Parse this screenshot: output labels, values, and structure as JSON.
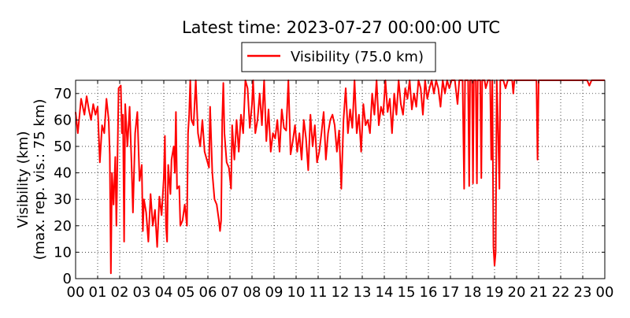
{
  "chart_data": {
    "type": "line",
    "title": "Latest time: 2023-07-27 00:00:00 UTC",
    "ylabel_line1": "Visibility (km)",
    "ylabel_line2": "(max. rep. vis.: 75 km)",
    "xlabel": "",
    "xlim": [
      0,
      24
    ],
    "ylim": [
      0,
      75
    ],
    "xticks": [
      0,
      1,
      2,
      3,
      4,
      5,
      6,
      7,
      8,
      9,
      10,
      11,
      12,
      13,
      14,
      15,
      16,
      17,
      18,
      19,
      20,
      21,
      22,
      23,
      24
    ],
    "xtick_labels": [
      "00",
      "01",
      "02",
      "03",
      "04",
      "05",
      "06",
      "07",
      "08",
      "09",
      "10",
      "11",
      "12",
      "13",
      "14",
      "15",
      "16",
      "17",
      "18",
      "19",
      "20",
      "21",
      "22",
      "23",
      "00"
    ],
    "yticks": [
      0,
      10,
      20,
      30,
      40,
      50,
      60,
      70
    ],
    "ytick_labels": [
      "0",
      "10",
      "20",
      "30",
      "40",
      "50",
      "60",
      "70"
    ],
    "grid": true,
    "legend": {
      "position": "top-center",
      "entries": [
        {
          "label": "Visibility (75.0 km)",
          "color": "#ff0000"
        }
      ]
    },
    "reference_line": {
      "y": 75,
      "color": "#000000"
    },
    "series": [
      {
        "name": "Visibility (75.0 km)",
        "color": "#ff0000",
        "points": [
          [
            0.0,
            63
          ],
          [
            0.1,
            55
          ],
          [
            0.25,
            68
          ],
          [
            0.4,
            62
          ],
          [
            0.5,
            69
          ],
          [
            0.6,
            64
          ],
          [
            0.7,
            60
          ],
          [
            0.8,
            66
          ],
          [
            0.9,
            62
          ],
          [
            1.0,
            65
          ],
          [
            1.1,
            44
          ],
          [
            1.2,
            58
          ],
          [
            1.3,
            55
          ],
          [
            1.4,
            68
          ],
          [
            1.5,
            60
          ],
          [
            1.55,
            47
          ],
          [
            1.6,
            2
          ],
          [
            1.65,
            40
          ],
          [
            1.72,
            28
          ],
          [
            1.8,
            46
          ],
          [
            1.85,
            20
          ],
          [
            1.95,
            72
          ],
          [
            2.05,
            73
          ],
          [
            2.1,
            55
          ],
          [
            2.15,
            62
          ],
          [
            2.2,
            14
          ],
          [
            2.25,
            66
          ],
          [
            2.35,
            50
          ],
          [
            2.45,
            65
          ],
          [
            2.55,
            40
          ],
          [
            2.6,
            25
          ],
          [
            2.7,
            55
          ],
          [
            2.8,
            63
          ],
          [
            2.9,
            37
          ],
          [
            3.0,
            43
          ],
          [
            3.05,
            18
          ],
          [
            3.1,
            30
          ],
          [
            3.2,
            25
          ],
          [
            3.3,
            14
          ],
          [
            3.4,
            32
          ],
          [
            3.5,
            20
          ],
          [
            3.6,
            26
          ],
          [
            3.7,
            12
          ],
          [
            3.8,
            31
          ],
          [
            3.9,
            24
          ],
          [
            4.0,
            38
          ],
          [
            4.05,
            54
          ],
          [
            4.1,
            20
          ],
          [
            4.15,
            14
          ],
          [
            4.2,
            43
          ],
          [
            4.3,
            32
          ],
          [
            4.35,
            45
          ],
          [
            4.45,
            50
          ],
          [
            4.5,
            40
          ],
          [
            4.55,
            63
          ],
          [
            4.6,
            34
          ],
          [
            4.7,
            35
          ],
          [
            4.75,
            20
          ],
          [
            4.85,
            22
          ],
          [
            4.95,
            28
          ],
          [
            5.05,
            20
          ],
          [
            5.1,
            55
          ],
          [
            5.15,
            62
          ],
          [
            5.2,
            75
          ],
          [
            5.25,
            60
          ],
          [
            5.35,
            58
          ],
          [
            5.45,
            75
          ],
          [
            5.55,
            55
          ],
          [
            5.65,
            50
          ],
          [
            5.75,
            60
          ],
          [
            5.85,
            48
          ],
          [
            5.95,
            45
          ],
          [
            6.05,
            42
          ],
          [
            6.1,
            65
          ],
          [
            6.2,
            40
          ],
          [
            6.3,
            30
          ],
          [
            6.4,
            28
          ],
          [
            6.5,
            22
          ],
          [
            6.55,
            18
          ],
          [
            6.6,
            22
          ],
          [
            6.65,
            60
          ],
          [
            6.7,
            74
          ],
          [
            6.75,
            55
          ],
          [
            6.85,
            44
          ],
          [
            6.95,
            42
          ],
          [
            7.05,
            34
          ],
          [
            7.1,
            58
          ],
          [
            7.2,
            45
          ],
          [
            7.3,
            60
          ],
          [
            7.4,
            48
          ],
          [
            7.5,
            62
          ],
          [
            7.6,
            55
          ],
          [
            7.7,
            75
          ],
          [
            7.8,
            72
          ],
          [
            7.9,
            57
          ],
          [
            8.0,
            66
          ],
          [
            8.05,
            75
          ],
          [
            8.15,
            55
          ],
          [
            8.25,
            60
          ],
          [
            8.35,
            70
          ],
          [
            8.45,
            58
          ],
          [
            8.55,
            75
          ],
          [
            8.65,
            52
          ],
          [
            8.75,
            64
          ],
          [
            8.85,
            48
          ],
          [
            8.95,
            55
          ],
          [
            9.05,
            53
          ],
          [
            9.15,
            60
          ],
          [
            9.25,
            48
          ],
          [
            9.35,
            64
          ],
          [
            9.45,
            57
          ],
          [
            9.55,
            56
          ],
          [
            9.65,
            75
          ],
          [
            9.75,
            47
          ],
          [
            9.85,
            52
          ],
          [
            9.95,
            58
          ],
          [
            10.05,
            48
          ],
          [
            10.15,
            55
          ],
          [
            10.25,
            45
          ],
          [
            10.35,
            60
          ],
          [
            10.45,
            53
          ],
          [
            10.55,
            41
          ],
          [
            10.65,
            62
          ],
          [
            10.75,
            50
          ],
          [
            10.85,
            58
          ],
          [
            10.95,
            44
          ],
          [
            11.05,
            48
          ],
          [
            11.15,
            55
          ],
          [
            11.25,
            63
          ],
          [
            11.35,
            45
          ],
          [
            11.45,
            55
          ],
          [
            11.55,
            60
          ],
          [
            11.65,
            62
          ],
          [
            11.75,
            58
          ],
          [
            11.85,
            48
          ],
          [
            11.95,
            56
          ],
          [
            12.05,
            34
          ],
          [
            12.15,
            60
          ],
          [
            12.25,
            72
          ],
          [
            12.35,
            55
          ],
          [
            12.45,
            64
          ],
          [
            12.55,
            57
          ],
          [
            12.65,
            75
          ],
          [
            12.75,
            55
          ],
          [
            12.85,
            62
          ],
          [
            12.95,
            48
          ],
          [
            13.05,
            66
          ],
          [
            13.15,
            58
          ],
          [
            13.25,
            60
          ],
          [
            13.35,
            55
          ],
          [
            13.45,
            70
          ],
          [
            13.55,
            62
          ],
          [
            13.65,
            75
          ],
          [
            13.75,
            58
          ],
          [
            13.85,
            65
          ],
          [
            13.95,
            62
          ],
          [
            14.05,
            75
          ],
          [
            14.15,
            63
          ],
          [
            14.25,
            68
          ],
          [
            14.35,
            55
          ],
          [
            14.45,
            70
          ],
          [
            14.55,
            62
          ],
          [
            14.65,
            75
          ],
          [
            14.75,
            66
          ],
          [
            14.85,
            62
          ],
          [
            14.95,
            72
          ],
          [
            15.05,
            68
          ],
          [
            15.15,
            75
          ],
          [
            15.25,
            64
          ],
          [
            15.35,
            70
          ],
          [
            15.45,
            65
          ],
          [
            15.55,
            75
          ],
          [
            15.65,
            72
          ],
          [
            15.75,
            62
          ],
          [
            15.85,
            75
          ],
          [
            15.95,
            68
          ],
          [
            16.05,
            72
          ],
          [
            16.15,
            75
          ],
          [
            16.25,
            70
          ],
          [
            16.35,
            75
          ],
          [
            16.45,
            72
          ],
          [
            16.55,
            65
          ],
          [
            16.65,
            75
          ],
          [
            16.75,
            70
          ],
          [
            16.85,
            75
          ],
          [
            16.95,
            72
          ],
          [
            17.05,
            75
          ],
          [
            17.2,
            75
          ],
          [
            17.32,
            66
          ],
          [
            17.4,
            75
          ],
          [
            17.55,
            75
          ],
          [
            17.62,
            34
          ],
          [
            17.66,
            75
          ],
          [
            17.8,
            75
          ],
          [
            17.85,
            35
          ],
          [
            17.89,
            75
          ],
          [
            17.98,
            75
          ],
          [
            18.02,
            36
          ],
          [
            18.06,
            75
          ],
          [
            18.15,
            75
          ],
          [
            18.2,
            36
          ],
          [
            18.24,
            75
          ],
          [
            18.35,
            75
          ],
          [
            18.4,
            38
          ],
          [
            18.44,
            75
          ],
          [
            18.55,
            75
          ],
          [
            18.6,
            72
          ],
          [
            18.7,
            75
          ],
          [
            18.8,
            75
          ],
          [
            18.85,
            45
          ],
          [
            18.9,
            75
          ],
          [
            18.95,
            12
          ],
          [
            19.0,
            5
          ],
          [
            19.05,
            10
          ],
          [
            19.1,
            75
          ],
          [
            19.15,
            60
          ],
          [
            19.22,
            34
          ],
          [
            19.26,
            75
          ],
          [
            19.4,
            75
          ],
          [
            19.5,
            72
          ],
          [
            19.6,
            75
          ],
          [
            19.8,
            75
          ],
          [
            19.85,
            70
          ],
          [
            19.9,
            75
          ],
          [
            20.9,
            75
          ],
          [
            20.95,
            45
          ],
          [
            21.0,
            75
          ],
          [
            22.0,
            75
          ],
          [
            23.2,
            75
          ],
          [
            23.3,
            73
          ],
          [
            23.4,
            75
          ],
          [
            24.0,
            75
          ]
        ]
      }
    ]
  }
}
